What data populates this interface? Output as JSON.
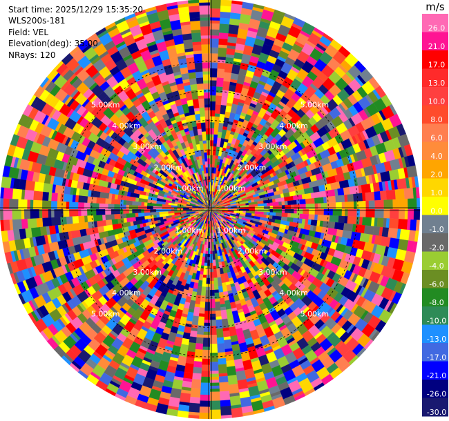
{
  "info": {
    "start_time": "Start time: 2025/12/29 15:35:20",
    "instrument": "WLS200s-181",
    "field": "Field: VEL",
    "elevation": "Elevation(deg): 35.00",
    "nrays": "NRays: 120"
  },
  "chart_data": {
    "type": "heatmap",
    "projection": "polar-ppi",
    "field": "VEL",
    "n_rays": 120,
    "range_km_max": 7.1,
    "range_rings_km": [
      1,
      2,
      3,
      4,
      5
    ],
    "ring_labels": [
      "1.00km",
      "2.00km",
      "3.00km",
      "4.00km",
      "5.00km"
    ],
    "colorbar": {
      "unit": "m/s",
      "vmin": -30,
      "vmax": 30,
      "ticks": [
        "26.0",
        "21.0",
        "17.0",
        "13.0",
        "10.0",
        "8.0",
        "6.0",
        "4.0",
        "2.0",
        "1.0",
        "0.0",
        "-1.0",
        "-2.0",
        "-4.0",
        "-6.0",
        "-8.0",
        "-10.0",
        "-13.0",
        "-17.0",
        "-21.0",
        "-26.0",
        "-30.0"
      ],
      "colors": [
        "#ff69b4",
        "#ff1493",
        "#ff0000",
        "#ff2a2a",
        "#ff3f3f",
        "#ff4b2b",
        "#ff7f50",
        "#ff8c3a",
        "#ffa500",
        "#ffd700",
        "#ffff00",
        "#708090",
        "#696969",
        "#9acd32",
        "#6b8e23",
        "#228b22",
        "#2e8b57",
        "#1e90ff",
        "#4169e1",
        "#0000ff",
        "#000080",
        "#191970"
      ]
    }
  }
}
